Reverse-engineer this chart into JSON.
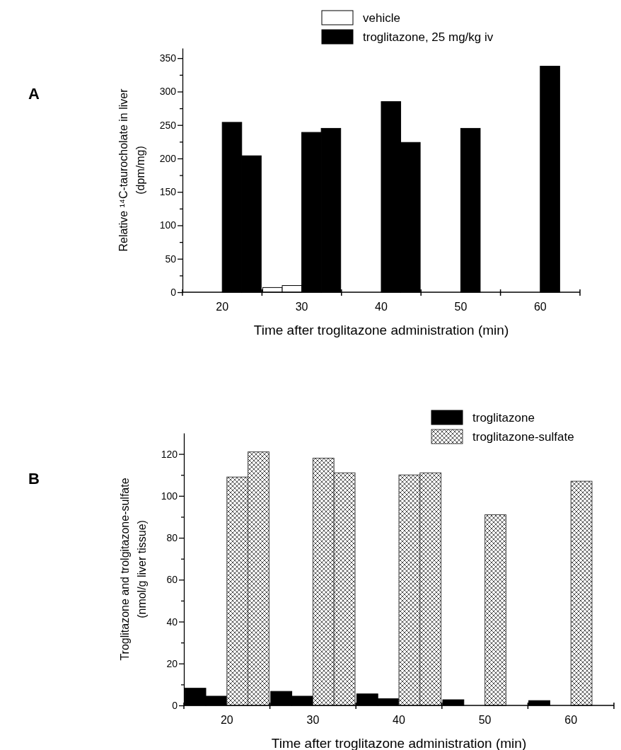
{
  "chart_data": [
    {
      "type": "bar",
      "annotations": [
        "A"
      ],
      "xlabel": "Time after troglitazone administration (min)",
      "ylabel": "Relative ¹⁴C-taurocholate in liver\n(dpm/mg)",
      "categories": [
        "20",
        "30",
        "40",
        "50",
        "60"
      ],
      "ylim": [
        0,
        365
      ],
      "yticks": [
        0,
        {
          "value": 25,
          "label": null
        },
        50,
        {
          "value": 75,
          "label": null
        },
        100,
        {
          "value": 125,
          "label": null
        },
        150,
        {
          "value": 175,
          "label": null
        },
        200,
        {
          "value": 225,
          "label": null
        },
        250,
        {
          "value": 275,
          "label": null
        },
        300,
        {
          "value": 325,
          "label": null
        },
        350
      ],
      "legend": "top right",
      "grid": false,
      "series": [
        {
          "name": "vehicle",
          "color": "#ffffff",
          "values": [
            null,
            7,
            null,
            null,
            null
          ]
        },
        {
          "color": "#ffffff",
          "values": [
            null,
            10,
            null,
            null,
            null
          ]
        },
        {
          "name": "troglitazone, 25 mg/kg iv",
          "color": "#000000",
          "values": [
            254,
            239,
            285,
            245,
            338
          ]
        },
        {
          "color": "#000000",
          "values": [
            204,
            245,
            224,
            null,
            null
          ]
        }
      ]
    },
    {
      "type": "bar",
      "annotations": [
        "B"
      ],
      "xlabel": "Time after troglitazone administration (min)",
      "ylabel": "Troglitazone and trolgitazone-sulfate\n(nmol/g liver tissue)",
      "categories": [
        "20",
        "30",
        "40",
        "50",
        "60"
      ],
      "ylim": [
        0,
        130
      ],
      "yticks": [
        0,
        {
          "value": 10,
          "label": null
        },
        20,
        {
          "value": 30,
          "label": null
        },
        40,
        {
          "value": 50,
          "label": null
        },
        60,
        {
          "value": 70,
          "label": null
        },
        80,
        {
          "value": 90,
          "label": null
        },
        100,
        {
          "value": 110,
          "label": null
        },
        120
      ],
      "legend": "top right",
      "grid": false,
      "series": [
        {
          "name": "troglitazone",
          "color": "#000000",
          "values": [
            8.2,
            6.7,
            5.5,
            2.7,
            2.3
          ]
        },
        {
          "color": "#000000",
          "values": [
            4.4,
            4.4,
            3.2,
            null,
            null
          ]
        },
        {
          "name": "troglitazone-sulfate",
          "color": "#404040",
          "values": [
            109,
            118,
            110,
            91,
            107
          ]
        },
        {
          "color": "#404040",
          "values": [
            121,
            111,
            111,
            null,
            null
          ]
        }
      ]
    }
  ]
}
